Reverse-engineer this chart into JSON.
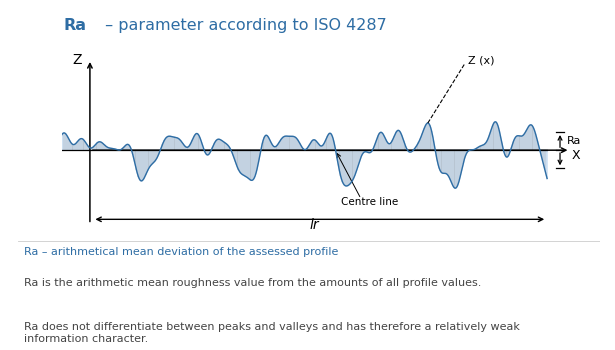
{
  "title_bold": "Ra",
  "title_rest": " – parameter according to ISO 4287",
  "title_fontsize": 11.5,
  "blue_header_color": "#2E6DA4",
  "light_blue_bg": "#C8DCF0",
  "sidebar_light": "#A8C4DC",
  "right_border_color": "#4A90C4",
  "wave_color": "#2E6DA4",
  "fill_color": "#C8DCF0",
  "centre_line_label": "Centre line",
  "lr_label": "lr",
  "z_label": "Z",
  "x_label": "X",
  "zx_label": "Z (x)",
  "ra_label": "Ra",
  "subtitle_color": "#2E6DA4",
  "subtitle": "Ra – arithmetical mean deviation of the assessed profile",
  "text1": "Ra is the arithmetic mean roughness value from the amounts of all profile values.",
  "text2": "Ra does not differentiate between peaks and valleys and has therefore a relatively weak\ninformation character.",
  "background_color": "#FFFFFF",
  "text_color": "#444444",
  "text_fontsize": 8.0,
  "subtitle_fontsize": 8.0
}
